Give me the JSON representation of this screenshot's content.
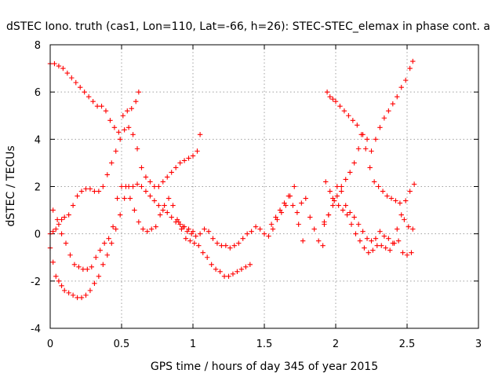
{
  "chart_data": {
    "type": "scatter",
    "title": "dSTEC Iono. truth (cas1, Lon=110, Lat=-66, h=26): STEC-STEC_elemax in phase cont. a",
    "xlabel": "GPS time / hours of day 345 of year 2015",
    "ylabel": "dSTEC  / TECUs",
    "xlim": [
      0,
      3
    ],
    "ylim": [
      -4,
      8
    ],
    "x_ticks": [
      "0",
      "0.5",
      "1",
      "1.5",
      "2",
      "2.5",
      "3"
    ],
    "y_ticks": [
      "-4",
      "-2",
      "0",
      "2",
      "4",
      "6",
      "8"
    ],
    "grid": true,
    "marker": "+",
    "color": "#ff0000",
    "series": [
      {
        "x": [
          0.0,
          0.03,
          0.06,
          0.09,
          0.12,
          0.15,
          0.18,
          0.21,
          0.24,
          0.27,
          0.3,
          0.33,
          0.36,
          0.39,
          0.42,
          0.45,
          0.48,
          0.51,
          0.54,
          0.57,
          0.6,
          0.62
        ],
        "y": [
          7.2,
          7.2,
          7.1,
          7.0,
          6.8,
          6.6,
          6.4,
          6.2,
          6.0,
          5.8,
          5.6,
          5.4,
          5.4,
          5.2,
          4.8,
          4.5,
          4.3,
          5.0,
          5.2,
          5.3,
          5.6,
          6.0
        ]
      },
      {
        "x": [
          0.0,
          0.02,
          0.04,
          0.06,
          0.08,
          0.1,
          0.13,
          0.16,
          0.19,
          0.22,
          0.25,
          0.28,
          0.31,
          0.34,
          0.37,
          0.4,
          0.43,
          0.46,
          0.49,
          0.52,
          0.55,
          0.58,
          0.61,
          0.64,
          0.67,
          0.7,
          0.73,
          0.76,
          0.79,
          0.82,
          0.85,
          0.88,
          0.91,
          0.94,
          0.97,
          1.0,
          1.03,
          1.05
        ],
        "y": [
          0.0,
          0.1,
          0.2,
          0.4,
          0.6,
          0.7,
          0.8,
          1.2,
          1.6,
          1.8,
          1.9,
          1.9,
          1.8,
          1.8,
          2.0,
          2.5,
          3.0,
          3.5,
          4.0,
          4.4,
          4.5,
          4.2,
          3.6,
          2.8,
          2.4,
          2.2,
          2.0,
          2.0,
          2.2,
          2.4,
          2.6,
          2.8,
          3.0,
          3.1,
          3.2,
          3.3,
          3.5,
          4.2
        ]
      },
      {
        "x": [
          0.0,
          0.02,
          0.04,
          0.06,
          0.08,
          0.1,
          0.13,
          0.16,
          0.19,
          0.22,
          0.25,
          0.28,
          0.31,
          0.34,
          0.37,
          0.4,
          0.43,
          0.46,
          0.49,
          0.52,
          0.55,
          0.58,
          0.61,
          0.64,
          0.67,
          0.7,
          0.73,
          0.76,
          0.79,
          0.82,
          0.85,
          0.88,
          0.91,
          0.94,
          0.97,
          1.0
        ],
        "y": [
          -0.6,
          -1.2,
          -1.8,
          -2.0,
          -2.2,
          -2.4,
          -2.5,
          -2.6,
          -2.7,
          -2.7,
          -2.6,
          -2.4,
          -2.1,
          -1.8,
          -1.3,
          -0.9,
          -0.4,
          0.2,
          0.8,
          1.5,
          2.0,
          2.0,
          2.1,
          2.0,
          1.8,
          1.6,
          1.4,
          1.2,
          1.0,
          0.9,
          0.7,
          0.5,
          0.4,
          0.3,
          0.2,
          0.1
        ]
      },
      {
        "x": [
          0.02,
          0.05,
          0.08,
          0.11,
          0.14,
          0.17,
          0.2,
          0.23,
          0.26,
          0.29,
          0.32,
          0.35,
          0.38,
          0.41,
          0.44,
          0.47,
          0.5,
          0.53,
          0.56,
          0.59,
          0.62,
          0.65,
          0.68,
          0.71,
          0.74,
          0.77,
          0.8,
          0.83,
          0.86,
          0.89,
          0.92,
          0.95,
          0.98,
          1.01,
          1.04,
          1.07,
          1.1,
          1.13,
          1.16,
          1.19,
          1.22,
          1.25,
          1.28,
          1.31,
          1.34,
          1.37,
          1.4
        ],
        "y": [
          1.0,
          0.6,
          0.0,
          -0.4,
          -0.9,
          -1.3,
          -1.4,
          -1.5,
          -1.5,
          -1.4,
          -1.0,
          -0.7,
          -0.4,
          -0.2,
          0.3,
          1.5,
          2.0,
          2.0,
          1.5,
          1.0,
          0.5,
          0.2,
          0.1,
          0.2,
          0.3,
          0.8,
          1.2,
          1.5,
          1.2,
          0.6,
          0.2,
          -0.2,
          -0.3,
          -0.4,
          -0.5,
          -0.8,
          -1.0,
          -1.3,
          -1.5,
          -1.6,
          -1.8,
          -1.8,
          -1.7,
          -1.6,
          -1.5,
          -1.4,
          -1.3
        ]
      },
      {
        "x": [
          0.9,
          0.93,
          0.96,
          0.99,
          1.02,
          1.05,
          1.08,
          1.11,
          1.14,
          1.17,
          1.2,
          1.23,
          1.26,
          1.29,
          1.32,
          1.35,
          1.38,
          1.41,
          1.44,
          1.47,
          1.5,
          1.53,
          1.56,
          1.59,
          1.62,
          1.65,
          1.68,
          1.71,
          1.74,
          1.77
        ],
        "y": [
          0.5,
          0.3,
          0.1,
          0.0,
          -0.1,
          0.0,
          0.2,
          0.1,
          -0.2,
          -0.4,
          -0.5,
          -0.5,
          -0.6,
          -0.5,
          -0.4,
          -0.2,
          0.0,
          0.1,
          0.3,
          0.2,
          0.0,
          -0.1,
          0.2,
          0.6,
          0.9,
          1.2,
          1.6,
          2.0,
          0.4,
          -0.3
        ]
      },
      {
        "x": [
          1.55,
          1.58,
          1.61,
          1.64,
          1.67,
          1.7,
          1.73,
          1.76,
          1.79,
          1.82,
          1.85,
          1.88,
          1.91
        ],
        "y": [
          0.4,
          0.7,
          1.0,
          1.3,
          1.6,
          1.2,
          0.9,
          1.3,
          1.5,
          0.7,
          0.2,
          -0.3,
          -0.5
        ]
      },
      {
        "x": [
          1.94,
          1.96,
          1.98,
          2.0,
          2.03,
          2.06,
          2.09,
          2.12,
          2.15,
          2.18,
          2.21,
          2.24,
          2.27,
          2.3,
          2.33,
          2.36,
          2.39,
          2.42,
          2.45,
          2.48,
          2.51,
          2.54
        ],
        "y": [
          6.0,
          5.8,
          5.7,
          5.6,
          5.4,
          5.2,
          5.0,
          4.8,
          4.6,
          4.2,
          3.6,
          2.8,
          2.2,
          2.0,
          1.8,
          1.6,
          1.5,
          1.4,
          1.3,
          0.6,
          0.3,
          0.2
        ]
      },
      {
        "x": [
          1.92,
          1.95,
          1.98,
          2.01,
          2.04,
          2.07,
          2.1,
          2.13,
          2.16,
          2.19,
          2.22,
          2.25,
          2.28,
          2.31,
          2.34,
          2.37,
          2.4,
          2.43,
          2.46,
          2.49,
          2.52,
          2.54
        ],
        "y": [
          0.5,
          0.8,
          1.2,
          1.6,
          2.0,
          2.3,
          2.6,
          3.0,
          3.6,
          4.2,
          4.0,
          3.5,
          4.0,
          4.5,
          4.9,
          5.2,
          5.5,
          5.8,
          6.2,
          6.5,
          7.0,
          7.3
        ]
      },
      {
        "x": [
          1.93,
          1.96,
          1.99,
          2.02,
          2.05,
          2.08,
          2.11,
          2.14,
          2.17,
          2.2,
          2.23,
          2.26,
          2.29,
          2.32,
          2.35,
          2.38,
          2.41,
          2.44,
          2.47,
          2.5,
          2.53
        ],
        "y": [
          2.2,
          1.8,
          1.4,
          1.2,
          1.0,
          0.8,
          0.4,
          0.0,
          -0.3,
          -0.6,
          -0.8,
          -0.7,
          -0.5,
          -0.5,
          -0.6,
          -0.7,
          -0.4,
          -0.3,
          -0.8,
          -0.9,
          -0.8
        ]
      },
      {
        "x": [
          1.92,
          1.95,
          1.98,
          2.01,
          2.04,
          2.07,
          2.1,
          2.13,
          2.16,
          2.19,
          2.22,
          2.25,
          2.28,
          2.31,
          2.34,
          2.37,
          2.4,
          2.43,
          2.46,
          2.49,
          2.52,
          2.55
        ],
        "y": [
          0.4,
          0.8,
          1.5,
          2.0,
          1.8,
          1.2,
          0.9,
          0.7,
          0.4,
          0.1,
          -0.2,
          -0.3,
          -0.2,
          0.1,
          -0.1,
          -0.2,
          -0.4,
          0.2,
          0.8,
          1.4,
          1.8,
          2.1
        ]
      }
    ]
  }
}
